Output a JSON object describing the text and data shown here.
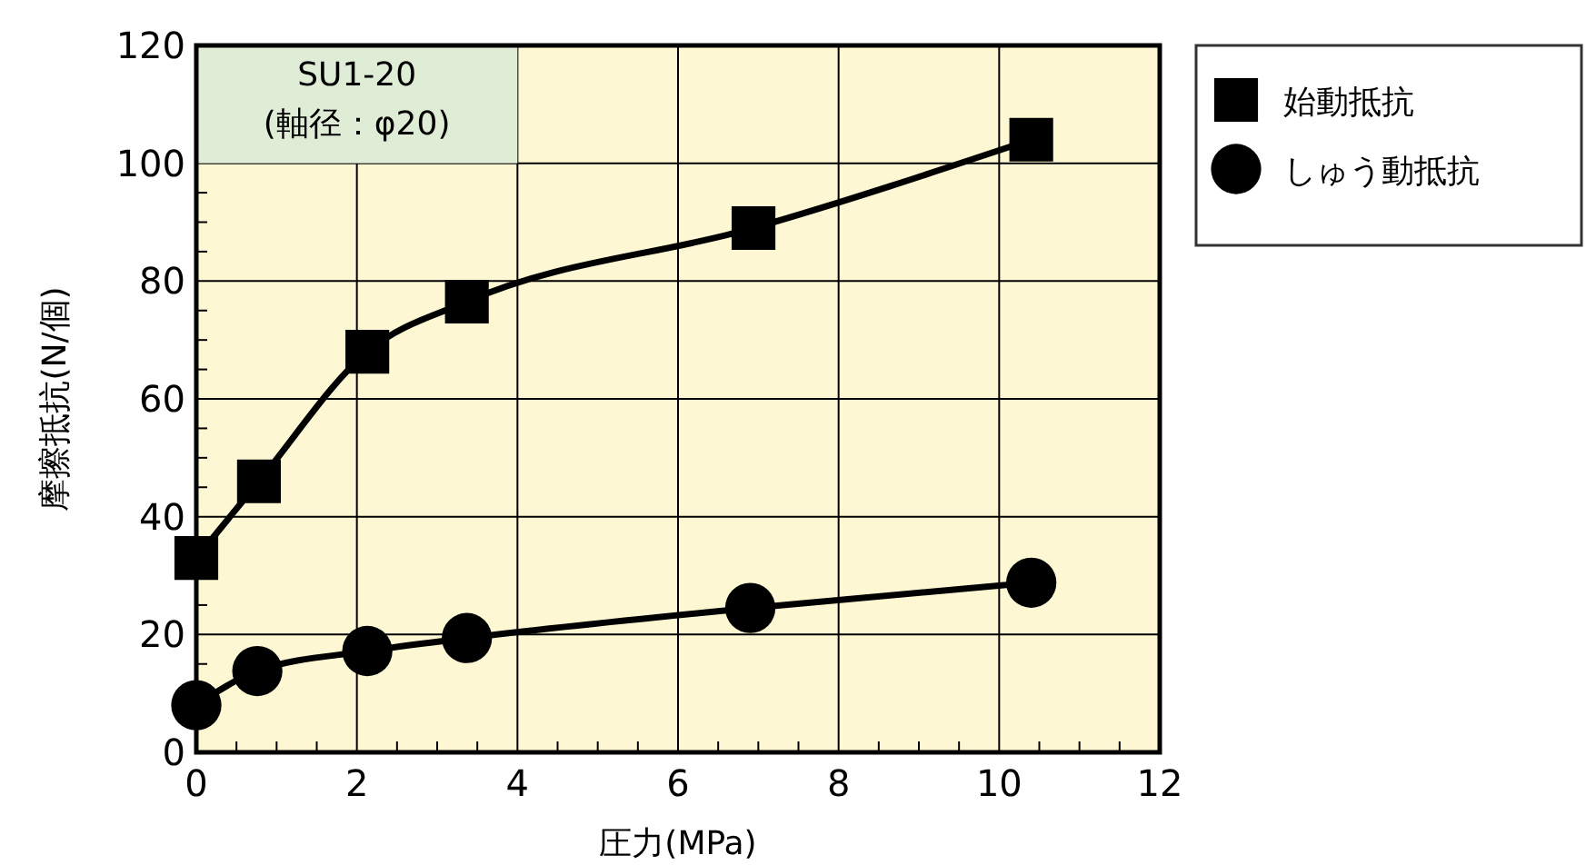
{
  "chart_data": {
    "type": "line",
    "xlabel": "圧力(MPa)",
    "ylabel": "摩擦抵抗(N/個)",
    "annotations": [
      "SU1-20\n(軸径：φ20)"
    ],
    "xlim": [
      0,
      12
    ],
    "ylim": [
      0,
      120
    ],
    "xticks": [
      0,
      {
        "value": 0.5,
        "label": null
      },
      {
        "value": 1,
        "label": null
      },
      {
        "value": 1.5,
        "label": null
      },
      2,
      {
        "value": 2.5,
        "label": null
      },
      {
        "value": 3,
        "label": null
      },
      {
        "value": 3.5,
        "label": null
      },
      4,
      {
        "value": 4.5,
        "label": null
      },
      {
        "value": 5,
        "label": null
      },
      {
        "value": 5.5,
        "label": null
      },
      6,
      {
        "value": 6.5,
        "label": null
      },
      {
        "value": 7,
        "label": null
      },
      {
        "value": 7.5,
        "label": null
      },
      8,
      {
        "value": 8.5,
        "label": null
      },
      {
        "value": 9,
        "label": null
      },
      {
        "value": 9.5,
        "label": null
      },
      10,
      {
        "value": 10.5,
        "label": null
      },
      {
        "value": 11,
        "label": null
      },
      {
        "value": 11.5,
        "label": null
      },
      12
    ],
    "yticks": [
      0,
      {
        "value": 5,
        "label": null
      },
      {
        "value": 10,
        "label": null
      },
      {
        "value": 15,
        "label": null
      },
      20,
      {
        "value": 25,
        "label": null
      },
      {
        "value": 30,
        "label": null
      },
      {
        "value": 35,
        "label": null
      },
      40,
      {
        "value": 45,
        "label": null
      },
      {
        "value": 50,
        "label": null
      },
      {
        "value": 55,
        "label": null
      },
      60,
      {
        "value": 65,
        "label": null
      },
      {
        "value": 70,
        "label": null
      },
      {
        "value": 75,
        "label": null
      },
      80,
      {
        "value": 85,
        "label": null
      },
      {
        "value": 90,
        "label": null
      },
      {
        "value": 95,
        "label": null
      },
      100,
      {
        "value": 105,
        "label": null
      },
      {
        "value": 110,
        "label": null
      },
      {
        "value": 115,
        "label": null
      },
      120
    ],
    "grid": true,
    "legend": "right",
    "series": [
      {
        "name": "始動抵抗",
        "color": "#000000",
        "marker": "square",
        "x": [
          0,
          0.78,
          2.13,
          3.37,
          6.94,
          10.4
        ],
        "values": [
          33,
          46,
          68,
          76.5,
          89,
          104
        ]
      },
      {
        "name": "しゅう動抵抗",
        "color": "#000000",
        "marker": "circle",
        "x": [
          0,
          0.76,
          2.13,
          3.37,
          6.9,
          10.4
        ],
        "values": [
          8,
          13.8,
          17.2,
          19.4,
          24.5,
          28.8
        ]
      }
    ]
  }
}
